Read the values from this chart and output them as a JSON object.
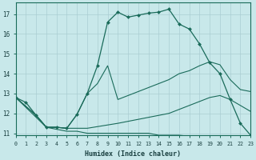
{
  "xlabel": "Humidex (Indice chaleur)",
  "bg_color": "#c8e8ea",
  "grid_color": "#aacdd2",
  "line_color": "#1a6b5a",
  "xlim": [
    0,
    23
  ],
  "ylim": [
    10.9,
    17.6
  ],
  "yticks": [
    11,
    12,
    13,
    14,
    15,
    16,
    17
  ],
  "xticks": [
    0,
    1,
    2,
    3,
    4,
    5,
    6,
    7,
    8,
    9,
    10,
    11,
    12,
    13,
    14,
    15,
    16,
    17,
    18,
    19,
    20,
    21,
    22,
    23
  ],
  "main_x": [
    0,
    1,
    2,
    3,
    4,
    5,
    6,
    7,
    8,
    9,
    10,
    11,
    12,
    13,
    14,
    15,
    16,
    17,
    18,
    19,
    20,
    21,
    22,
    23
  ],
  "main_y": [
    12.8,
    12.55,
    11.9,
    11.3,
    11.3,
    11.25,
    11.95,
    13.0,
    14.4,
    16.6,
    17.1,
    16.85,
    16.95,
    17.05,
    17.1,
    17.25,
    16.5,
    16.25,
    15.5,
    14.55,
    14.0,
    12.7,
    11.5,
    10.9
  ],
  "line2_x": [
    0,
    2,
    3,
    4,
    5,
    6,
    7,
    8,
    9,
    10,
    11,
    12,
    13,
    14,
    15,
    16,
    17,
    18,
    19,
    20,
    21,
    22,
    23
  ],
  "line2_y": [
    12.8,
    11.9,
    11.3,
    11.3,
    11.25,
    11.95,
    13.0,
    13.5,
    14.4,
    12.7,
    12.9,
    13.1,
    13.3,
    13.5,
    13.7,
    14.0,
    14.15,
    14.4,
    14.6,
    14.45,
    13.7,
    13.2,
    13.1
  ],
  "line3_x": [
    0,
    2,
    3,
    4,
    5,
    6,
    7,
    10,
    15,
    19,
    20,
    21,
    22,
    23
  ],
  "line3_y": [
    12.8,
    11.9,
    11.3,
    11.3,
    11.25,
    11.25,
    11.25,
    11.5,
    12.0,
    12.8,
    12.9,
    12.7,
    12.4,
    12.1
  ],
  "line4_x": [
    0,
    3,
    4,
    5,
    6,
    7,
    8,
    9,
    10,
    11,
    12,
    13,
    14,
    15,
    16,
    17,
    18,
    19,
    20,
    21,
    22,
    23
  ],
  "line4_y": [
    12.8,
    11.3,
    11.2,
    11.1,
    11.1,
    11.0,
    11.0,
    11.0,
    11.0,
    11.0,
    11.0,
    11.0,
    10.9,
    10.9,
    10.9,
    10.85,
    10.85,
    10.85,
    10.85,
    10.85,
    10.85,
    10.85
  ]
}
